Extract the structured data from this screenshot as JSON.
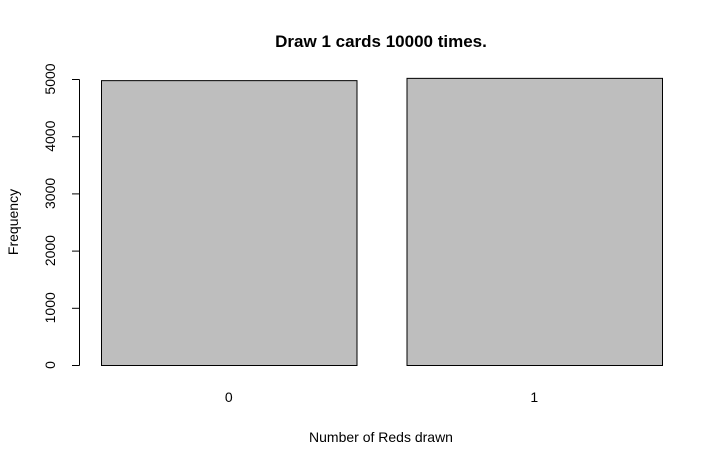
{
  "chart_data": {
    "type": "bar",
    "title": "Draw  1  cards  10000  times.",
    "xlabel": "Number of Reds drawn",
    "ylabel": "Frequency",
    "categories": [
      "0",
      "1"
    ],
    "values": [
      4980,
      5020
    ],
    "ylim": [
      0,
      5000
    ],
    "yticks": [
      "0",
      "1000",
      "2000",
      "3000",
      "4000",
      "5000"
    ],
    "bar_color": "#bebebe",
    "grid": false
  }
}
